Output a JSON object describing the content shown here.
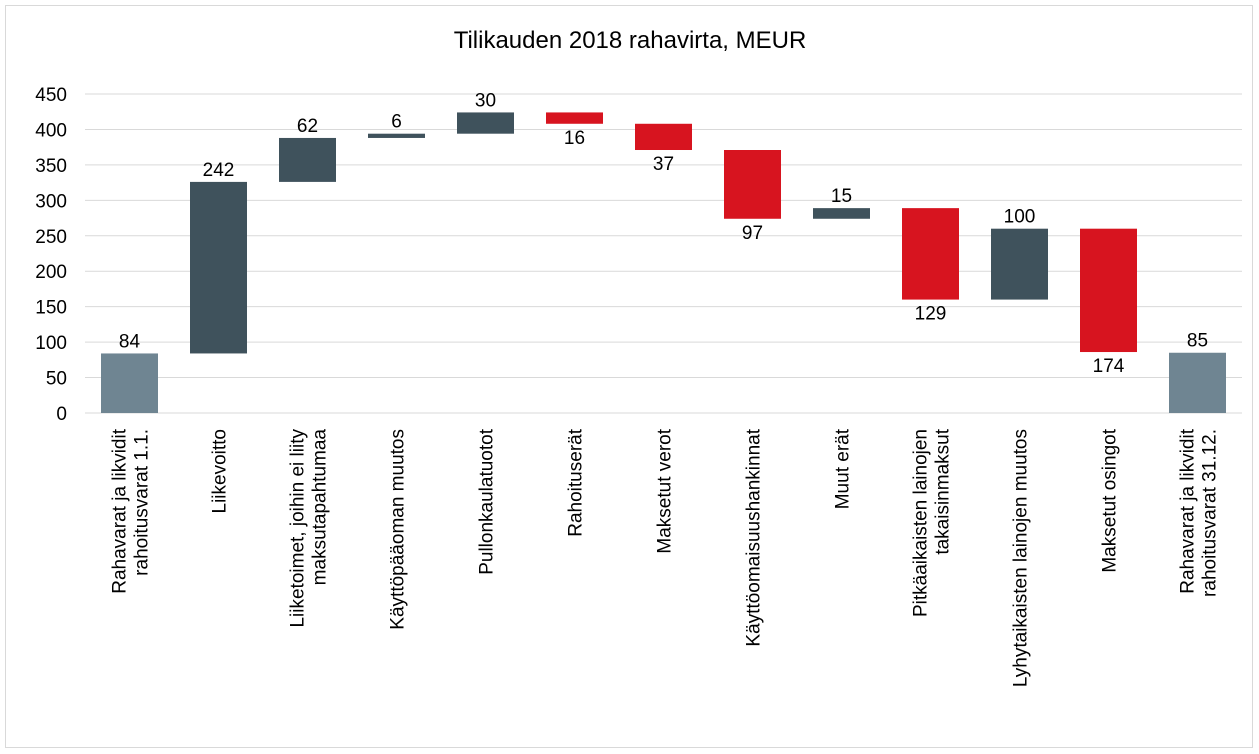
{
  "chart_data": {
    "type": "waterfall",
    "title": "Tilikauden 2018 rahavirta, MEUR",
    "categories": [
      "Rahavarat ja likvidit\nrahoitusvarat 1.1.",
      "Liikevoitto",
      "Liiketoimet, joihin ei liity\nmaksutapahtumaa",
      "Käyttöpääoman muutos",
      "Pullonkaulatuotot",
      "Rahoituserät",
      "Maksetut verot",
      "Käyttöomaisuushankinnat",
      "Muut erät",
      "Pitkäaikaisten lainojen\ntakaisinmaksut",
      "Lyhytaikaisten lainojen muutos",
      "Maksetut osingot",
      "Rahavarat ja likvidit\nrahoitusvarat 31.12."
    ],
    "values": [
      84,
      242,
      62,
      6,
      30,
      16,
      37,
      97,
      15,
      129,
      100,
      174,
      85
    ],
    "kinds": [
      "total",
      "increase",
      "increase",
      "increase",
      "increase",
      "decrease",
      "decrease",
      "decrease",
      "increase",
      "decrease",
      "increase",
      "decrease",
      "total"
    ],
    "colors": {
      "total": "#6f8592",
      "increase": "#3f525c",
      "decrease": "#d7141f"
    },
    "ylim": [
      0,
      450
    ],
    "yticks": [
      0,
      50,
      100,
      150,
      200,
      250,
      300,
      350,
      400,
      450
    ],
    "grid": true
  }
}
